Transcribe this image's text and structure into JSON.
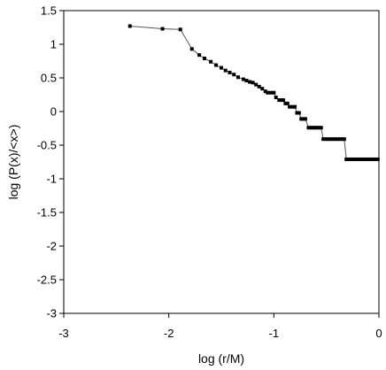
{
  "chart_data": {
    "type": "scatter",
    "title": "",
    "xlabel": "log (r/M)",
    "ylabel": "log (P(x)/<x>)",
    "xlim": [
      -3,
      0
    ],
    "ylim": [
      -3,
      1.5
    ],
    "xticks": [
      "-3",
      "-2",
      "-1",
      "0"
    ],
    "xtick_values": [
      -3,
      -2,
      -1,
      0
    ],
    "yticks": [
      "1.5",
      "1",
      "0.5",
      "0",
      "-0.5",
      "-1",
      "-1.5",
      "-2",
      "-2.5",
      "-3"
    ],
    "ytick_values": [
      1.5,
      1,
      0.5,
      0,
      -0.5,
      -1,
      -1.5,
      -2,
      -2.5,
      -3
    ],
    "grid": false,
    "legend": "none",
    "connected": true,
    "colors": {
      "marker": "#000000",
      "line": "#555555",
      "axes": "#000000"
    },
    "series": [
      {
        "values_x": [
          -2.37,
          -2.06,
          -1.89,
          -1.78,
          -1.71,
          -1.66,
          -1.6,
          -1.55,
          -1.5,
          -1.46,
          -1.42,
          -1.38,
          -1.34,
          -1.29,
          -1.26,
          -1.23,
          -1.2,
          -1.17,
          -1.14,
          -1.11,
          -1.08,
          -1.06,
          -1.03,
          -1.0,
          -0.98,
          -0.95,
          -0.93,
          -0.91,
          -0.89,
          -0.87,
          -0.85,
          -0.82,
          -0.8,
          -0.78,
          -0.76,
          -0.74,
          -0.72,
          -0.7,
          -0.67,
          -0.65,
          -0.63,
          -0.61,
          -0.59,
          -0.57,
          -0.55,
          -0.53,
          -0.51,
          -0.49,
          -0.47,
          -0.45,
          -0.43,
          -0.41,
          -0.39,
          -0.37,
          -0.35,
          -0.33,
          -0.31,
          -0.29,
          -0.27,
          -0.25,
          -0.23,
          -0.21,
          -0.19,
          -0.17,
          -0.15,
          -0.13,
          -0.11,
          -0.09,
          -0.07,
          -0.05,
          -0.03,
          -0.01
        ],
        "values_y": [
          1.27,
          1.23,
          1.22,
          0.93,
          0.84,
          0.79,
          0.74,
          0.69,
          0.65,
          0.61,
          0.58,
          0.55,
          0.51,
          0.48,
          0.46,
          0.44,
          0.43,
          0.4,
          0.37,
          0.34,
          0.3,
          0.28,
          0.28,
          0.28,
          0.21,
          0.17,
          0.17,
          0.17,
          0.12,
          0.12,
          0.07,
          0.07,
          0.07,
          -0.02,
          -0.02,
          -0.11,
          -0.11,
          -0.11,
          -0.24,
          -0.24,
          -0.24,
          -0.24,
          -0.24,
          -0.24,
          -0.24,
          -0.41,
          -0.41,
          -0.41,
          -0.41,
          -0.41,
          -0.41,
          -0.41,
          -0.41,
          -0.41,
          -0.41,
          -0.41,
          -0.71,
          -0.71,
          -0.71,
          -0.71,
          -0.71,
          -0.71,
          -0.71,
          -0.71,
          -0.71,
          -0.71,
          -0.71,
          -0.71,
          -0.71,
          -0.71,
          -0.71,
          -0.71
        ]
      }
    ]
  }
}
